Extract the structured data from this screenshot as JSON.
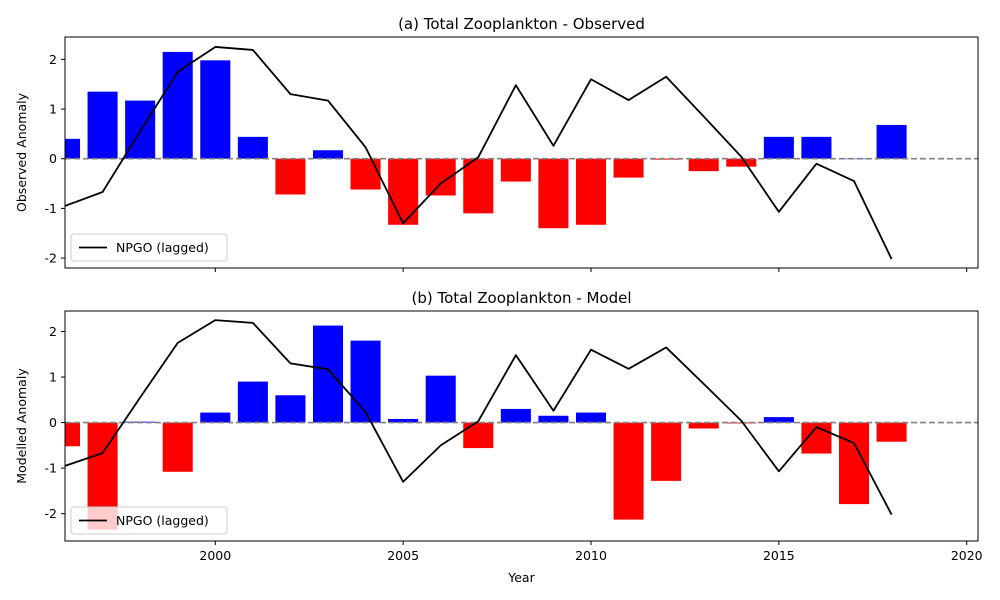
{
  "chart_data": [
    {
      "type": "bar",
      "title": "(a) Total Zooplankton - Observed",
      "xlabel": "",
      "ylabel": "Observed Anomaly",
      "xlim": [
        1996,
        2020.3
      ],
      "ylim": [
        -2.2,
        2.45
      ],
      "xticks": [
        2000,
        2005,
        2010,
        2015,
        2020
      ],
      "yticks": [
        -2,
        -1,
        0,
        1,
        2
      ],
      "legend": {
        "position": "lower-left",
        "entries": [
          "NPGO (lagged)"
        ]
      },
      "colors": {
        "positive": "#0000ff",
        "negative": "#ff0000",
        "line": "#000000",
        "zero_line": "#808080"
      },
      "x": [
        1996,
        1997,
        1998,
        1999,
        2000,
        2001,
        2002,
        2003,
        2004,
        2005,
        2006,
        2007,
        2008,
        2009,
        2010,
        2011,
        2012,
        2013,
        2014,
        2015,
        2016,
        2017,
        2018
      ],
      "series": [
        {
          "kind": "bar",
          "values": [
            0.4,
            1.35,
            1.17,
            2.15,
            1.98,
            0.44,
            -0.72,
            0.17,
            -0.62,
            -1.33,
            -0.74,
            -1.1,
            -0.46,
            -1.4,
            -1.33,
            -0.38,
            -0.02,
            -0.25,
            -0.16,
            0.44,
            0.44,
            0.0,
            0.68
          ]
        },
        {
          "kind": "line",
          "name": "NPGO (lagged)",
          "values": [
            -0.95,
            -0.67,
            0.55,
            1.75,
            2.25,
            2.19,
            1.3,
            1.17,
            0.23,
            -1.3,
            -0.5,
            0.03,
            1.48,
            0.26,
            1.6,
            1.18,
            1.65,
            0.85,
            0.04,
            -1.07,
            -0.1,
            -0.45,
            -2.02
          ]
        }
      ]
    },
    {
      "type": "bar",
      "title": "(b) Total Zooplankton - Model",
      "xlabel": "Year",
      "ylabel": "Modelled Anomaly",
      "xlim": [
        1996,
        2020.3
      ],
      "ylim": [
        -2.6,
        2.45
      ],
      "xticks": [
        2000,
        2005,
        2010,
        2015,
        2020
      ],
      "yticks": [
        -2,
        -1,
        0,
        1,
        2
      ],
      "legend": {
        "position": "lower-left",
        "entries": [
          "NPGO (lagged)"
        ]
      },
      "colors": {
        "positive": "#0000ff",
        "negative": "#ff0000",
        "line": "#000000",
        "zero_line": "#808080"
      },
      "x": [
        1996,
        1997,
        1998,
        1999,
        2000,
        2001,
        2002,
        2003,
        2004,
        2005,
        2006,
        2007,
        2008,
        2009,
        2010,
        2011,
        2012,
        2013,
        2014,
        2015,
        2016,
        2017,
        2018
      ],
      "series": [
        {
          "kind": "bar",
          "values": [
            -0.52,
            -2.35,
            0.02,
            -1.08,
            0.22,
            0.9,
            0.6,
            2.13,
            1.8,
            0.08,
            1.03,
            -0.56,
            0.3,
            0.15,
            0.22,
            -2.13,
            -1.28,
            -0.13,
            -0.02,
            0.12,
            -0.68,
            -1.79,
            -0.42
          ]
        },
        {
          "kind": "line",
          "name": "NPGO (lagged)",
          "values": [
            -0.95,
            -0.67,
            0.55,
            1.75,
            2.25,
            2.19,
            1.3,
            1.17,
            0.23,
            -1.3,
            -0.5,
            0.03,
            1.48,
            0.26,
            1.6,
            1.18,
            1.65,
            0.85,
            0.04,
            -1.07,
            -0.1,
            -0.45,
            -2.02
          ]
        }
      ]
    }
  ]
}
